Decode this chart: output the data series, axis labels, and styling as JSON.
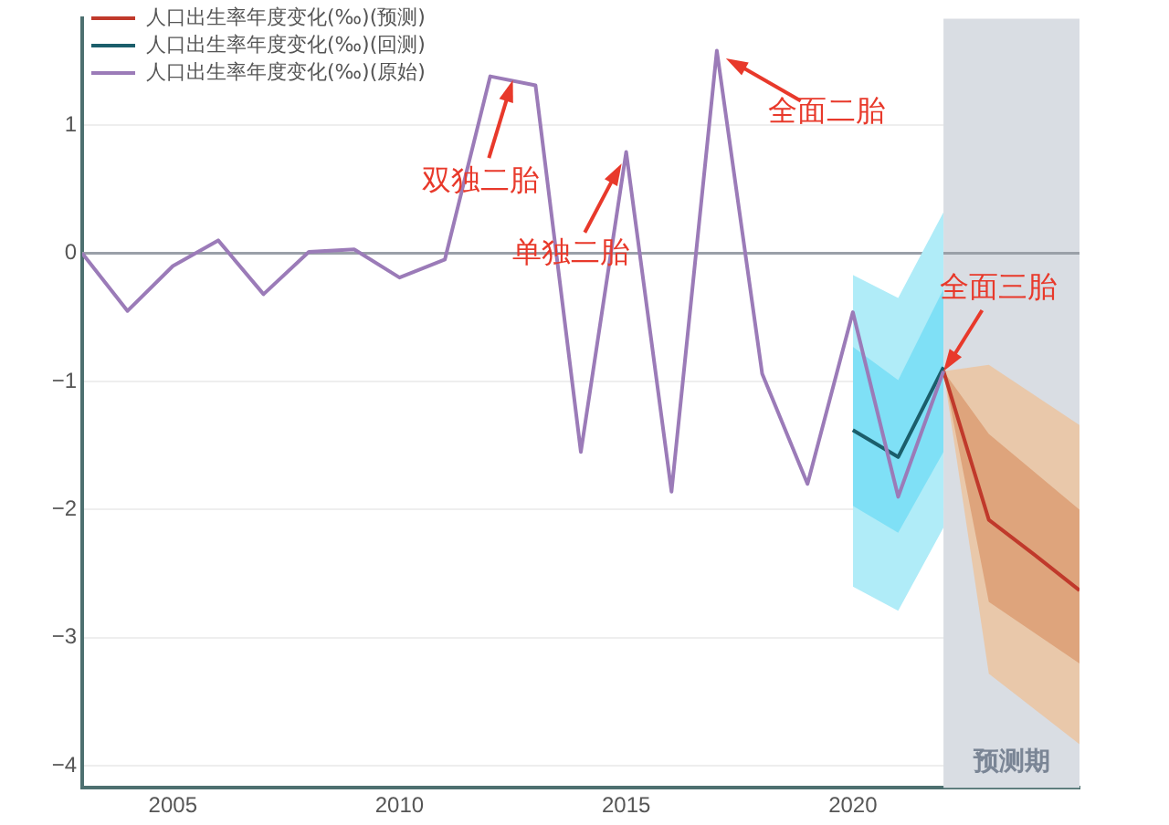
{
  "chart_data": {
    "type": "line",
    "x": [
      2003,
      2004,
      2005,
      2006,
      2007,
      2008,
      2009,
      2010,
      2011,
      2012,
      2013,
      2014,
      2015,
      2016,
      2017,
      2018,
      2019,
      2020,
      2021,
      2022
    ],
    "series": [
      {
        "name": "人口出生率年度变化(‰)(预测)",
        "color": "#c0392b",
        "x": [
          2022,
          2023,
          2024,
          2025
        ],
        "values": [
          -0.92,
          -2.08,
          -2.35,
          -2.63
        ]
      },
      {
        "color": "#e9c8aa",
        "x": [
          2022,
          2023,
          2025
        ],
        "values": [
          null,
          null,
          null
        ],
        "lower": [
          -0.92,
          -3.28,
          -3.83
        ],
        "upper": [
          -0.92,
          -0.87,
          -1.34
        ]
      },
      {
        "color": "#dea47c",
        "x": [
          2022,
          2023,
          2025
        ],
        "values": [
          null,
          null,
          null
        ],
        "lower": [
          -0.92,
          -2.72,
          -3.2
        ],
        "upper": [
          -0.92,
          -1.41,
          -2.0
        ]
      },
      {
        "name": "人口出生率年度变化(‰)(回测)",
        "color": "#1b5e6b",
        "x": [
          2020,
          2021,
          2022
        ],
        "values": [
          -1.38,
          -1.59,
          -0.89
        ]
      },
      {
        "color": "#b0ecf8",
        "x": [
          2020,
          2021,
          2022
        ],
        "values": [
          null,
          null,
          null
        ],
        "lower": [
          -2.6,
          -2.79,
          -2.14
        ],
        "upper": [
          -0.17,
          -0.35,
          0.32
        ]
      },
      {
        "color": "#7fe0f6",
        "x": [
          2020,
          2021,
          2022
        ],
        "values": [
          null,
          null,
          null
        ],
        "lower": [
          -1.97,
          -2.18,
          -1.55
        ],
        "upper": [
          -0.73,
          -0.99,
          -0.28
        ]
      },
      {
        "name": "人口出生率年度变化(‰)(原始)",
        "color": "#9b7bb8",
        "values": [
          0,
          -0.45,
          -0.1,
          0.1,
          -0.32,
          0.01,
          0.03,
          -0.19,
          -0.05,
          1.38,
          1.31,
          -1.55,
          0.79,
          -1.86,
          1.58,
          -0.94,
          -1.8,
          -0.46,
          -1.9,
          -0.92
        ]
      }
    ],
    "xlim": [
      2003,
      2025
    ],
    "xticks": [
      2005,
      2010,
      2015,
      2020
    ],
    "ylim": [
      -4.17,
      1.83
    ],
    "yticks": [
      -4,
      -3,
      -2,
      -1,
      0,
      1
    ],
    "grid": "y",
    "legend": "top left",
    "marker": "none",
    "line_style": "solid",
    "ref_lines": [
      {
        "axis": "y",
        "value": 0,
        "color": "#9aa0a8"
      }
    ],
    "bands": [
      {
        "axis": "x",
        "from": 2022,
        "to": 2025,
        "label": "预测期",
        "color": "#d9dde3"
      }
    ],
    "annotations": [
      {
        "text": "双独二胎",
        "x": 2012.5,
        "y": 1.35
      },
      {
        "text": "单独二胎",
        "x": 2014.9,
        "y": 0.7
      },
      {
        "text": "全面二胎",
        "x": 2017.2,
        "y": 1.52
      },
      {
        "text": "全面三胎",
        "x": 2022,
        "y": -0.92
      }
    ]
  }
}
